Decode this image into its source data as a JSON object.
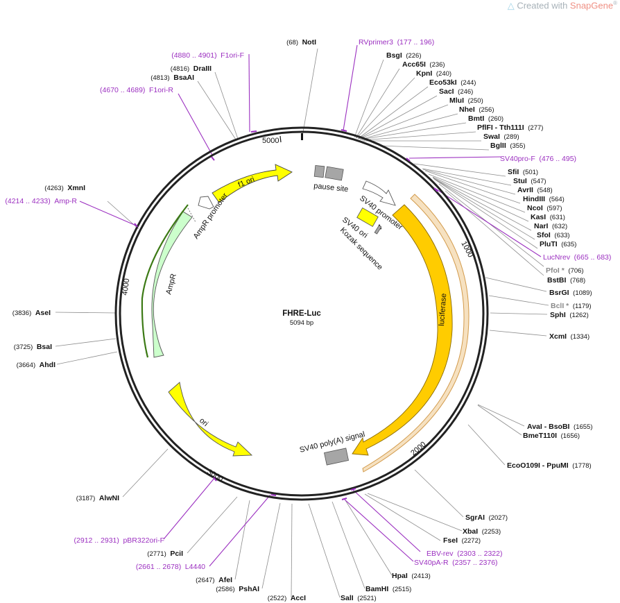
{
  "watermark": {
    "prefix": "Created with ",
    "brand": "SnapGene",
    "mark": "®"
  },
  "plasmid": {
    "name": "FHRE-Luc",
    "size_label": "5094 bp"
  },
  "ticks": [
    "5000",
    "1000",
    "2000",
    "3000",
    "4000"
  ],
  "features": [
    {
      "id": "f1ori",
      "label": "f1 ori",
      "color": "#ffff00"
    },
    {
      "id": "pause",
      "label": "pause site",
      "color": "#a6a6a6"
    },
    {
      "id": "sv40prom",
      "label": "SV40 promoter",
      "color": "#ffffff"
    },
    {
      "id": "sv40ori",
      "label": "SV40 ori",
      "color": "#ffff00"
    },
    {
      "id": "kozak",
      "label": "Kozak sequence",
      "color": "#a6a6a6"
    },
    {
      "id": "ampprom",
      "label": "AmpR promoter",
      "color": "#ffffff"
    },
    {
      "id": "ampr",
      "label": "AmpR",
      "color": "#ccffcc"
    },
    {
      "id": "luc",
      "label": "luciferase",
      "color": "#ffcc00"
    },
    {
      "id": "ori",
      "label": "ori",
      "color": "#ffff00"
    },
    {
      "id": "polya",
      "label": "SV40 poly(A) signal",
      "color": "#a6a6a6"
    }
  ],
  "top_left": [
    {
      "id": "notI",
      "pos": "(68)",
      "name": "NotI"
    },
    {
      "id": "f1orif",
      "pos": "(4880 .. 4901)",
      "name": "F1ori-F",
      "primer": true
    },
    {
      "id": "draIII",
      "pos": "(4816)",
      "name": "DraIII"
    },
    {
      "id": "bsaAI",
      "pos": "(4813)",
      "name": "BsaAI"
    },
    {
      "id": "f1orir",
      "pos": "(4670 .. 4689)",
      "name": "F1ori-R",
      "primer": true
    }
  ],
  "right_top": [
    {
      "id": "rvprimer3",
      "name": "RVprimer3",
      "pos": "(177 .. 196)",
      "primer": true
    },
    {
      "id": "bsgI",
      "name": "BsgI",
      "pos": "(226)"
    },
    {
      "id": "acc65I",
      "name": "Acc65I",
      "pos": "(236)"
    },
    {
      "id": "kpnI",
      "name": "KpnI",
      "pos": "(240)"
    },
    {
      "id": "eco53kI",
      "name": "Eco53kI",
      "pos": "(244)"
    },
    {
      "id": "sacI",
      "name": "SacI",
      "pos": "(246)"
    },
    {
      "id": "mluI",
      "name": "MluI",
      "pos": "(250)"
    },
    {
      "id": "nheI",
      "name": "NheI",
      "pos": "(256)"
    },
    {
      "id": "bmtI",
      "name": "BmtI",
      "pos": "(260)"
    },
    {
      "id": "pflFI",
      "name": "PflFI - Tth111I",
      "pos": "(277)"
    },
    {
      "id": "swaI",
      "name": "SwaI",
      "pos": "(289)"
    },
    {
      "id": "bglII",
      "name": "BglII",
      "pos": "(355)"
    },
    {
      "id": "sv40prof",
      "name": "SV40pro-F",
      "pos": "(476 .. 495)",
      "primer": true
    },
    {
      "id": "sfiI",
      "name": "SfiI",
      "pos": "(501)"
    },
    {
      "id": "stuI",
      "name": "StuI",
      "pos": "(547)"
    },
    {
      "id": "avrII",
      "name": "AvrII",
      "pos": "(548)"
    },
    {
      "id": "hindIII",
      "name": "HindIII",
      "pos": "(564)"
    },
    {
      "id": "ncoI",
      "name": "NcoI",
      "pos": "(597)"
    },
    {
      "id": "kasI",
      "name": "KasI",
      "pos": "(631)"
    },
    {
      "id": "narI",
      "name": "NarI",
      "pos": "(632)"
    },
    {
      "id": "sfoI",
      "name": "SfoI",
      "pos": "(633)"
    },
    {
      "id": "pluTI",
      "name": "PluTI",
      "pos": "(635)"
    },
    {
      "id": "lucnrev",
      "name": "LucNrev",
      "pos": "(665 .. 683)",
      "primer": true
    },
    {
      "id": "pfoI",
      "name": "PfoI *",
      "pos": "(706)",
      "dim": true
    },
    {
      "id": "bstBI",
      "name": "BstBI",
      "pos": "(768)"
    }
  ],
  "right_mid": [
    {
      "id": "bsrGI",
      "name": "BsrGI",
      "pos": "(1089)"
    },
    {
      "id": "bclI",
      "name": "BclI *",
      "pos": "(1179)",
      "dim": true
    },
    {
      "id": "sphI",
      "name": "SphI",
      "pos": "(1262)"
    },
    {
      "id": "xcmI",
      "name": "XcmI",
      "pos": "(1334)"
    },
    {
      "id": "avaI",
      "name": "AvaI - BsoBI",
      "pos": "(1655)"
    },
    {
      "id": "bmeT110I",
      "name": "BmeT110I",
      "pos": "(1656)"
    },
    {
      "id": "ecoO109I",
      "name": "EcoO109I - PpuMI",
      "pos": "(1778)"
    }
  ],
  "bottom_right": [
    {
      "id": "sgrAI",
      "name": "SgrAI",
      "pos": "(2027)"
    },
    {
      "id": "xbaI",
      "name": "XbaI",
      "pos": "(2253)"
    },
    {
      "id": "fseI",
      "name": "FseI",
      "pos": "(2272)"
    },
    {
      "id": "ebvrev",
      "name": "EBV-rev",
      "pos": "(2303 .. 2322)",
      "primer": true
    },
    {
      "id": "sv40par",
      "name": "SV40pA-R",
      "pos": "(2357 .. 2376)",
      "primer": true
    },
    {
      "id": "hpaI",
      "name": "HpaI",
      "pos": "(2413)"
    },
    {
      "id": "bamHI",
      "name": "BamHI",
      "pos": "(2515)"
    },
    {
      "id": "salI",
      "name": "SalI",
      "pos": "(2521)"
    }
  ],
  "bottom_left": [
    {
      "id": "accI",
      "pos": "(2522)",
      "name": "AccI"
    },
    {
      "id": "pshAI",
      "pos": "(2586)",
      "name": "PshAI"
    },
    {
      "id": "afeI",
      "pos": "(2647)",
      "name": "AfeI"
    },
    {
      "id": "l4440",
      "pos": "(2661 .. 2678)",
      "name": "L4440",
      "primer": true
    },
    {
      "id": "pciI",
      "pos": "(2771)",
      "name": "PciI"
    },
    {
      "id": "pbr322orif",
      "pos": "(2912 .. 2931)",
      "name": "pBR322ori-F",
      "primer": true
    },
    {
      "id": "alwNI",
      "pos": "(3187)",
      "name": "AlwNI"
    }
  ],
  "left": [
    {
      "id": "xmnI",
      "pos": "(4263)",
      "name": "XmnI"
    },
    {
      "id": "ampr_primer",
      "pos": "(4214 .. 4233)",
      "name": "Amp-R",
      "primer": true
    },
    {
      "id": "aseI",
      "pos": "(3836)",
      "name": "AseI"
    },
    {
      "id": "bsaI",
      "pos": "(3725)",
      "name": "BsaI"
    },
    {
      "id": "ahdI",
      "pos": "(3664)",
      "name": "AhdI"
    }
  ]
}
